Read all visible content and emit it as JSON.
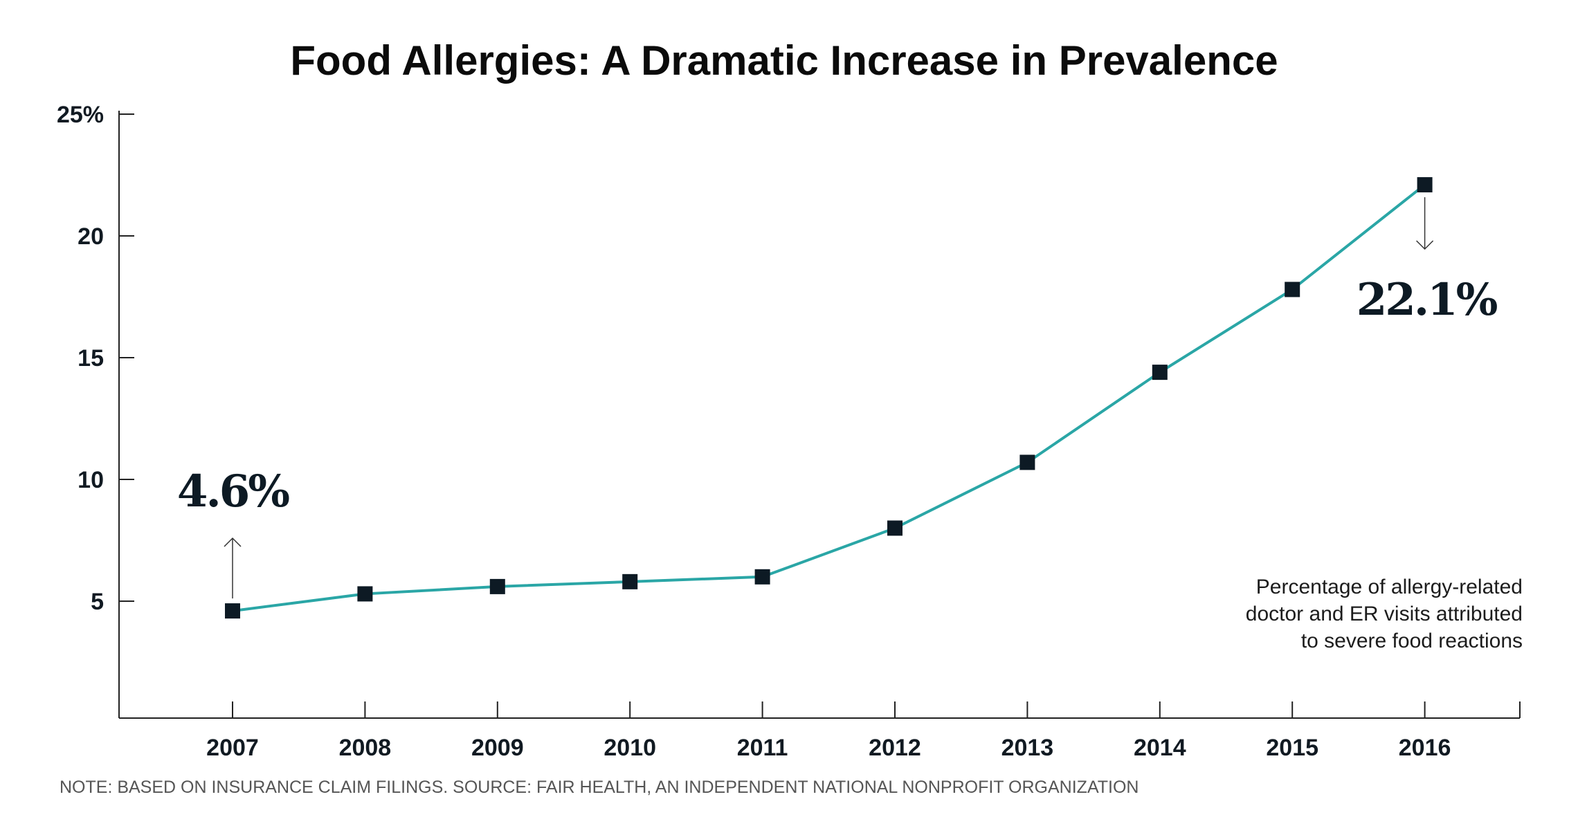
{
  "chart_data": {
    "type": "line",
    "title": "Food Allergies: A Dramatic Increase in Prevalence",
    "xlabel": "",
    "ylabel": "",
    "categories": [
      "2007",
      "2008",
      "2009",
      "2010",
      "2011",
      "2012",
      "2013",
      "2014",
      "2015",
      "2016"
    ],
    "series": [
      {
        "values": [
          4.6,
          5.3,
          5.6,
          5.8,
          6.0,
          8.0,
          10.7,
          14.4,
          17.8,
          22.1
        ]
      }
    ],
    "ylim": [
      0,
      25
    ],
    "y_ticks": [
      5,
      10,
      15,
      20,
      25
    ],
    "y_tick_labels": [
      "5",
      "10",
      "15",
      "20",
      "25%"
    ],
    "grid": false,
    "legend": "none",
    "annotations": {
      "start_value": "4.6%",
      "end_value": "22.1%",
      "description_lines": [
        "Percentage of allergy-related",
        "doctor and ER visits attributed",
        "to severe food reactions"
      ]
    },
    "note": "NOTE: BASED ON INSURANCE CLAIM FILINGS. SOURCE: FAIR HEALTH, AN INDEPENDENT NATIONAL NONPROFIT ORGANIZATION",
    "colors": {
      "line": "#2aa6a6",
      "marker": "#0d1a24",
      "axis": "#222222"
    }
  }
}
